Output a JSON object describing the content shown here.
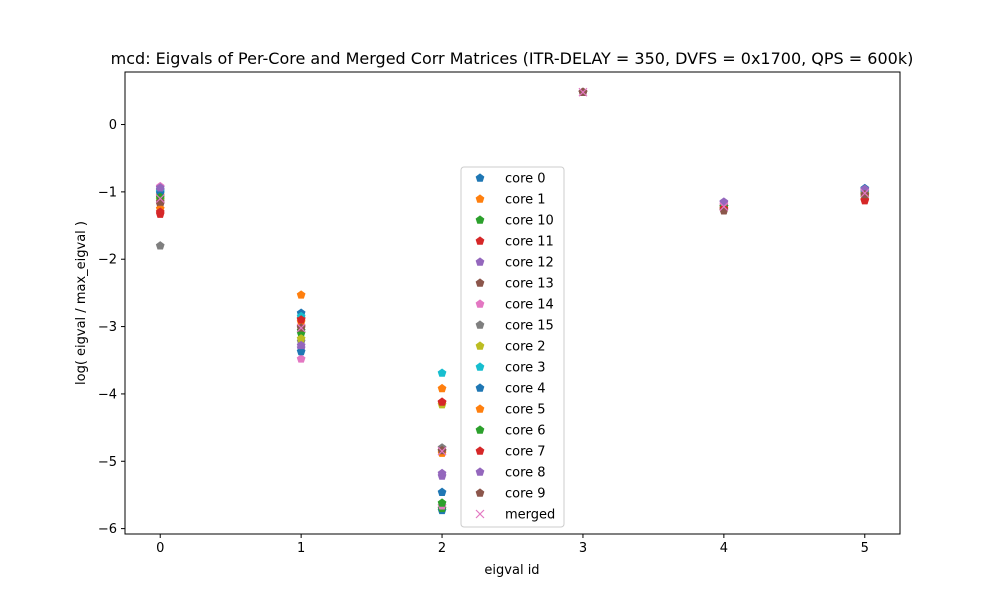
{
  "chart_data": {
    "type": "scatter",
    "title": "mcd: Eigvals of Per-Core and Merged Corr Matrices (ITR-DELAY = 350, DVFS = 0x1700, QPS = 600k)",
    "xlabel": "eigval id",
    "ylabel": "log( eigval / max_eigval )",
    "xlim": [
      -0.25,
      5.25
    ],
    "ylim": [
      -6.08,
      0.78
    ],
    "xticks": [
      0,
      1,
      2,
      3,
      4,
      5
    ],
    "xtick_labels": [
      "0",
      "1",
      "2",
      "3",
      "4",
      "5"
    ],
    "yticks": [
      0,
      -1,
      -2,
      -3,
      -4,
      -5,
      -6
    ],
    "ytick_labels": [
      "0",
      "−1",
      "−2",
      "−3",
      "−4",
      "−5",
      "−6"
    ],
    "grid": false,
    "legend_position": "center",
    "x": [
      0,
      1,
      2,
      3,
      4,
      5
    ],
    "series": [
      {
        "name": "core 0",
        "color": "#1f77b4",
        "marker": "pentagon",
        "values": [
          -0.97,
          -2.8,
          -5.73,
          0.48,
          -1.22,
          -0.95
        ]
      },
      {
        "name": "core 1",
        "color": "#ff7f0e",
        "marker": "pentagon",
        "values": [
          -1.05,
          -2.53,
          -3.92,
          0.48,
          -1.22,
          -1.05
        ]
      },
      {
        "name": "core 10",
        "color": "#2ca02c",
        "marker": "pentagon",
        "values": [
          -1.12,
          -3.1,
          -5.7,
          0.48,
          -1.22,
          -1.08
        ]
      },
      {
        "name": "core 11",
        "color": "#d62728",
        "marker": "pentagon",
        "values": [
          -1.33,
          -2.88,
          -4.13,
          0.48,
          -1.27,
          -1.12
        ]
      },
      {
        "name": "core 12",
        "color": "#9467bd",
        "marker": "pentagon",
        "values": [
          -0.98,
          -3.32,
          -5.18,
          0.48,
          -1.16,
          -0.97
        ]
      },
      {
        "name": "core 13",
        "color": "#8c564b",
        "marker": "pentagon",
        "values": [
          -1.18,
          -3.0,
          -4.85,
          0.48,
          -1.27,
          -1.02
        ]
      },
      {
        "name": "core 14",
        "color": "#e377c2",
        "marker": "pentagon",
        "values": [
          -0.92,
          -3.48,
          -5.66,
          0.48,
          -1.2,
          -1.0
        ]
      },
      {
        "name": "core 15",
        "color": "#7f7f7f",
        "marker": "pentagon",
        "values": [
          -1.8,
          -3.22,
          -4.8,
          0.48,
          -1.22,
          -1.0
        ]
      },
      {
        "name": "core 2",
        "color": "#bcbd22",
        "marker": "pentagon",
        "values": [
          -1.1,
          -3.18,
          -4.16,
          0.48,
          -1.22,
          -1.03
        ]
      },
      {
        "name": "core 3",
        "color": "#17becf",
        "marker": "pentagon",
        "values": [
          -1.0,
          -2.85,
          -3.69,
          0.48,
          -1.22,
          -0.98
        ]
      },
      {
        "name": "core 4",
        "color": "#1f77b4",
        "marker": "pentagon",
        "values": [
          -1.02,
          -3.37,
          -5.46,
          0.48,
          -1.22,
          -0.95
        ]
      },
      {
        "name": "core 5",
        "color": "#ff7f0e",
        "marker": "pentagon",
        "values": [
          -1.25,
          -2.93,
          -4.88,
          0.48,
          -1.22,
          -1.06
        ]
      },
      {
        "name": "core 6",
        "color": "#2ca02c",
        "marker": "pentagon",
        "values": [
          -1.08,
          -3.06,
          -5.62,
          0.48,
          -1.22,
          -1.04
        ]
      },
      {
        "name": "core 7",
        "color": "#d62728",
        "marker": "pentagon",
        "values": [
          -1.3,
          -2.9,
          -4.12,
          0.48,
          -1.25,
          -1.13
        ]
      },
      {
        "name": "core 8",
        "color": "#9467bd",
        "marker": "pentagon",
        "values": [
          -0.94,
          -3.28,
          -5.22,
          0.48,
          -1.15,
          -0.96
        ]
      },
      {
        "name": "core 9",
        "color": "#8c564b",
        "marker": "pentagon",
        "values": [
          -1.15,
          -3.02,
          -4.84,
          0.48,
          -1.28,
          -1.04
        ]
      },
      {
        "name": "merged",
        "color": "#e377c2",
        "marker": "x",
        "values": [
          -1.1,
          -3.02,
          -4.85,
          0.48,
          -1.22,
          -1.02
        ]
      }
    ]
  }
}
